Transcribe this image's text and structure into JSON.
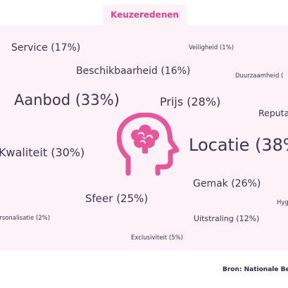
{
  "tab": {
    "label": "Keuzeredenen"
  },
  "cloud": {
    "service": "Service (17%)",
    "veiligheid": "Veiligheid (1%)",
    "beschikbaarheid": "Beschikbaarheid (16%)",
    "duurzaamheid": "Duurzaamheid (",
    "aanbod": "Aanbod (33%)",
    "prijs": "Prijs (28%)",
    "reputatie": "Reputa",
    "locatie": "Locatie (38%",
    "kwaliteit": "Kwaliteit (30%)",
    "gemak": "Gemak (26%)",
    "sfeer": "Sfeer (25%)",
    "hygiene": "Hyg",
    "personalisatie": "ersonalisatie (2%)",
    "uitstraling": "Uitstraling (12%)",
    "exclusiviteit": "Exclusiviteit (5%)"
  },
  "icon": {
    "name": "brain-head-icon",
    "color": "#e8559a"
  },
  "colors": {
    "accent": "#e0428a",
    "panel_bg": "#fdf2f7",
    "text": "#3c3551"
  },
  "footer": {
    "source": "Bron: Nationale Ber"
  }
}
